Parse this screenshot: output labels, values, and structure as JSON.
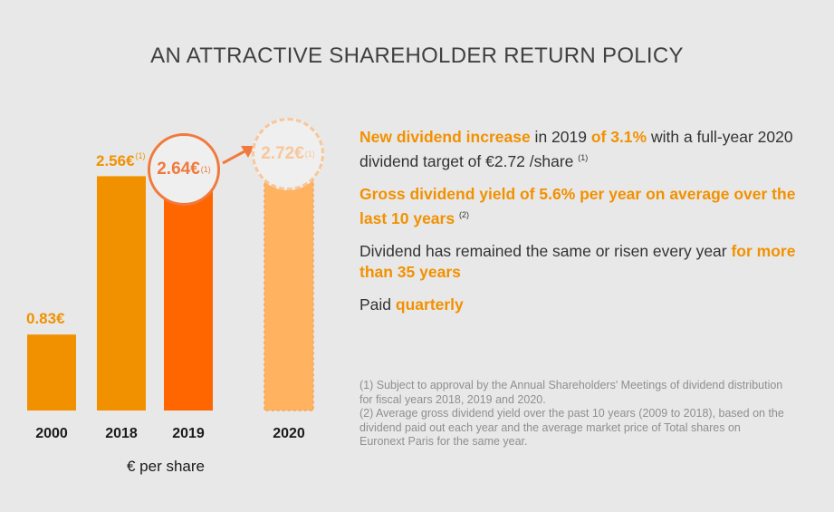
{
  "title": "AN ATTRACTIVE SHAREHOLDER RETURN POLICY",
  "chart_data": {
    "type": "bar",
    "categories": [
      "2000",
      "2018",
      "2019",
      "2020"
    ],
    "values": [
      0.83,
      2.56,
      2.64,
      2.72
    ],
    "value_labels": [
      "0.83€",
      "2.56€",
      "2.64€",
      "2.72€"
    ],
    "footnote_marks": [
      "",
      "(1)",
      "(1)",
      "(1)"
    ],
    "bar_colors": [
      "#f29100",
      "#f29100",
      "#ff6600",
      "#ffb361"
    ],
    "label_colors": [
      "#f29100",
      "#f29100",
      "#f07a3c",
      "#f8c79a"
    ],
    "projected_category": "2020",
    "unit_label": "€ per share",
    "ylim": [
      0,
      3.0
    ],
    "grid": false,
    "xlabel": "",
    "ylabel": ""
  },
  "bullets": [
    {
      "parts": [
        {
          "text": "New dividend increase",
          "hl": true
        },
        {
          "text": " in 2019 ",
          "hl": false
        },
        {
          "text": "of 3.1%",
          "hl": true
        },
        {
          "text": " with a full-year 2020 dividend target of €2.72 /share",
          "hl": false
        }
      ],
      "note": "(1)"
    },
    {
      "parts": [
        {
          "text": "Gross dividend yield of 5.6% per year on average over the last 10 years",
          "hl": true
        }
      ],
      "note": "(2)"
    },
    {
      "parts": [
        {
          "text": "Dividend has remained the same or risen every year ",
          "hl": false
        },
        {
          "text": "for more than 35 years",
          "hl": true
        }
      ],
      "note": ""
    },
    {
      "parts": [
        {
          "text": "Paid ",
          "hl": false
        },
        {
          "text": "quarterly",
          "hl": true
        }
      ],
      "note": ""
    }
  ],
  "footnotes": {
    "note1": "(1) Subject to approval by the Annual Shareholders' Meetings of dividend distribution for fiscal years 2018, 2019 and 2020.",
    "note2": "(2) Average gross dividend yield over the past 10 years (2009 to 2018), based on the dividend paid out each year and the average market price of Total shares on Euronext Paris for the same year."
  },
  "colors": {
    "accent": "#f29100",
    "accent_dark": "#ff6600",
    "projected": "#ffb361",
    "arrow": "#f07a3c"
  }
}
